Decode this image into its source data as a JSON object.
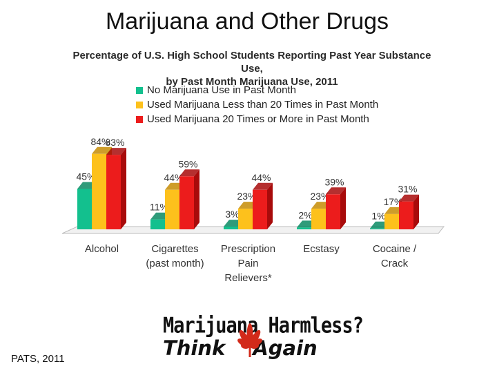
{
  "slide": {
    "title": "Marijuana and Other Drugs",
    "source": "PATS, 2011"
  },
  "chart_data": {
    "type": "bar",
    "title_lines": [
      "Percentage of U.S. High School Students Reporting Past Year Substance Use,",
      "by Past Month Marijuana Use, 2011"
    ],
    "categories": [
      [
        "Alcohol"
      ],
      [
        "Cigarettes",
        "(past month)"
      ],
      [
        "Prescription",
        "Pain",
        "Relievers*"
      ],
      [
        "Ecstasy"
      ],
      [
        "Cocaine /",
        "Crack"
      ]
    ],
    "series": [
      {
        "name": "No Marijuana Use in Past Month",
        "color": "#13c08e",
        "side": "#0a8a63",
        "values": [
          45,
          11,
          3,
          2,
          1
        ]
      },
      {
        "name": "Used Marijuana Less than 20 Times in Past Month",
        "color": "#fdc11c",
        "side": "#c58c05",
        "values": [
          84,
          44,
          23,
          23,
          17
        ]
      },
      {
        "name": "Used Marijuana 20 Times or More in Past Month",
        "color": "#ec1c1c",
        "side": "#a80b0b",
        "values": [
          83,
          59,
          44,
          39,
          31
        ]
      }
    ],
    "data_labels": [
      [
        "45%",
        "11%",
        "3%",
        "2%",
        "1%"
      ],
      [
        "84%",
        "44%",
        "23%",
        "23%",
        "17%"
      ],
      [
        "83%",
        "59%",
        "44%",
        "39%",
        "31%"
      ]
    ],
    "ylim": [
      0,
      100
    ],
    "legend_position": "top-left",
    "grid": false
  },
  "logo": {
    "line1": "Marijuana Harmless?",
    "line2_left": "Think",
    "line2_right": "Again",
    "leaf_icon": "cannabis-leaf-icon",
    "leaf_color": "#d22a1a"
  }
}
